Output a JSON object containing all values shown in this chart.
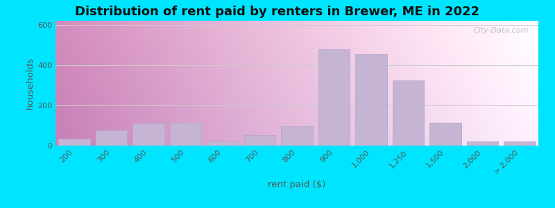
{
  "title": "Distribution of rent paid by renters in Brewer, ME in 2022",
  "xlabel": "rent paid ($)",
  "ylabel": "households",
  "bar_labels": [
    "200",
    "300",
    "400",
    "500",
    "600",
    "700",
    "800",
    "900",
    "1,000",
    "1,250",
    "1,500",
    "2,000",
    "> 2,000"
  ],
  "bar_values": [
    35,
    75,
    110,
    115,
    20,
    50,
    95,
    480,
    455,
    325,
    115,
    20,
    20
  ],
  "bar_color": "#c5b4d4",
  "bar_edge_color": "#b8a8cc",
  "ylim": [
    0,
    620
  ],
  "yticks": [
    0,
    200,
    400,
    600
  ],
  "background_outer": "#00e5ff",
  "title_fontsize": 13,
  "axis_label_fontsize": 9.5,
  "tick_fontsize": 8,
  "watermark_text": "City-Data.com"
}
